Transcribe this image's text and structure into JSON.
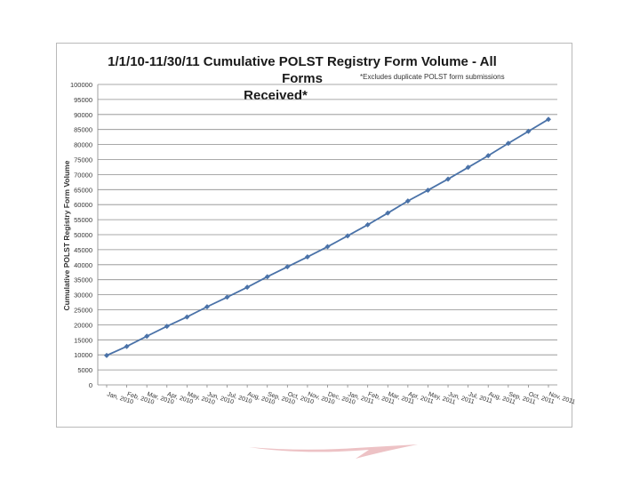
{
  "chart_data": {
    "type": "line",
    "title": "1/1/10-11/30/11 Cumulative  POLST Registry Form Volume - All Forms Received*",
    "note": "*Excludes duplicate POLST form submissions",
    "xlabel": "",
    "ylabel": "Cumulative POLST Registry Form Volume",
    "ylim": [
      0,
      100000
    ],
    "yticks": [
      0,
      5000,
      10000,
      15000,
      20000,
      25000,
      30000,
      35000,
      40000,
      45000,
      50000,
      55000,
      60000,
      65000,
      70000,
      75000,
      80000,
      85000,
      90000,
      95000,
      100000
    ],
    "grid": true,
    "categories": [
      "Jan, 2010",
      "Feb, 2010",
      "Mar, 2010",
      "Apr, 2010",
      "May, 2010",
      "Jun, 2010",
      "Jul, 2010",
      "Aug, 2010",
      "Sep, 2010",
      "Oct, 2010",
      "Nov, 2010",
      "Dec, 2010",
      "Jan, 2011",
      "Feb, 2011",
      "Mar, 2011",
      "Apr, 2011",
      "May, 2011",
      "Jun, 2011",
      "Jul, 2011",
      "Aug, 2011",
      "Sep, 2011",
      "Oct, 2011",
      "Nov, 2011"
    ],
    "series": [
      {
        "values": [
          9800,
          12800,
          16200,
          19500,
          22600,
          26000,
          29200,
          32500,
          36000,
          39300,
          42600,
          46000,
          49600,
          53300,
          57200,
          61200,
          64800,
          68500,
          72400,
          76300,
          80400,
          84400,
          88400
        ],
        "color": "#4a72a8"
      }
    ]
  },
  "decor": {
    "swoosh_color": "#e6a8ad"
  }
}
